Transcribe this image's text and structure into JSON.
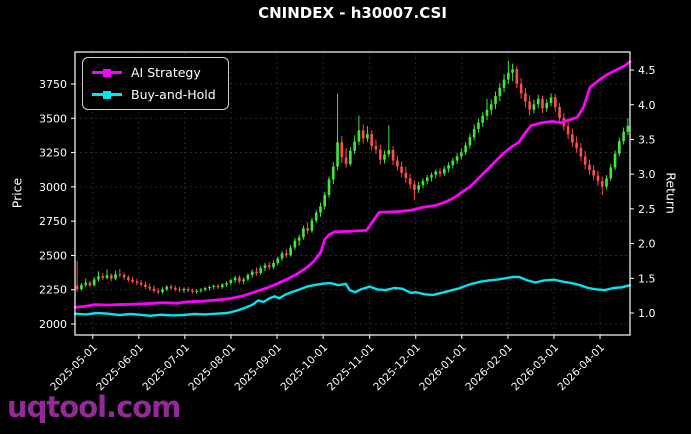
{
  "title": "CNINDEX - h30007.CSI",
  "watermark": {
    "text": "uqtool.com",
    "color": "#932a97"
  },
  "legend": {
    "items": [
      {
        "label": "AI Strategy",
        "color": "#ff00ff"
      },
      {
        "label": "Buy-and-Hold",
        "color": "#00e5ee"
      }
    ]
  },
  "chart_data": {
    "type": "candlestick+line",
    "title": "CNINDEX - h30007.CSI",
    "ylabel_left": "Price",
    "ylabel_right": "Return",
    "grid": true,
    "legend_position": "upper-left",
    "up_color": "#3ae83a",
    "down_color": "#ff4d4d",
    "axis_color": "#ffffff",
    "grid_color": "#555555",
    "price_ticks": [
      2000,
      2250,
      2500,
      2750,
      3000,
      3250,
      3500,
      3750
    ],
    "return_ticks": [
      1.0,
      1.5,
      2.0,
      2.5,
      3.0,
      3.5,
      4.0,
      4.5
    ],
    "price_range": [
      1920,
      3983
    ],
    "return_range": [
      0.683,
      4.76
    ],
    "x_ticks": [
      {
        "t": 0.032,
        "label": "2025-05-01"
      },
      {
        "t": 0.115,
        "label": "2025-06-01"
      },
      {
        "t": 0.198,
        "label": "2025-07-01"
      },
      {
        "t": 0.281,
        "label": "2025-08-01"
      },
      {
        "t": 0.364,
        "label": "2025-09-01"
      },
      {
        "t": 0.447,
        "label": "2025-10-01"
      },
      {
        "t": 0.531,
        "label": "2025-11-01"
      },
      {
        "t": 0.614,
        "label": "2025-12-01"
      },
      {
        "t": 0.697,
        "label": "2026-01-01"
      },
      {
        "t": 0.78,
        "label": "2026-02-01"
      },
      {
        "t": 0.863,
        "label": "2026-03-01"
      },
      {
        "t": 0.946,
        "label": "2026-04-01"
      }
    ],
    "candles": [
      [
        2280,
        2460,
        2235,
        2255
      ],
      [
        2255,
        2300,
        2242,
        2285
      ],
      [
        2285,
        2332,
        2270,
        2302
      ],
      [
        2302,
        2315,
        2268,
        2282
      ],
      [
        2282,
        2342,
        2275,
        2325
      ],
      [
        2325,
        2385,
        2310,
        2348
      ],
      [
        2348,
        2372,
        2320,
        2336
      ],
      [
        2336,
        2398,
        2325,
        2355
      ],
      [
        2355,
        2368,
        2312,
        2330
      ],
      [
        2330,
        2390,
        2318,
        2362
      ],
      [
        2362,
        2402,
        2340,
        2358
      ],
      [
        2358,
        2375,
        2322,
        2340
      ],
      [
        2340,
        2356,
        2305,
        2322
      ],
      [
        2322,
        2345,
        2295,
        2310
      ],
      [
        2310,
        2330,
        2282,
        2300
      ],
      [
        2300,
        2322,
        2272,
        2288
      ],
      [
        2288,
        2310,
        2255,
        2270
      ],
      [
        2270,
        2295,
        2242,
        2258
      ],
      [
        2258,
        2282,
        2228,
        2242
      ],
      [
        2242,
        2262,
        2218,
        2232
      ],
      [
        2232,
        2268,
        2222,
        2252
      ],
      [
        2252,
        2285,
        2240,
        2272
      ],
      [
        2272,
        2288,
        2248,
        2262
      ],
      [
        2262,
        2280,
        2238,
        2252
      ],
      [
        2252,
        2272,
        2232,
        2246
      ],
      [
        2246,
        2266,
        2228,
        2255
      ],
      [
        2255,
        2270,
        2232,
        2245
      ],
      [
        2245,
        2258,
        2222,
        2236
      ],
      [
        2236,
        2255,
        2220,
        2242
      ],
      [
        2242,
        2262,
        2228,
        2250
      ],
      [
        2250,
        2272,
        2238,
        2262
      ],
      [
        2262,
        2280,
        2245,
        2270
      ],
      [
        2270,
        2288,
        2252,
        2278
      ],
      [
        2278,
        2292,
        2255,
        2268
      ],
      [
        2268,
        2298,
        2258,
        2288
      ],
      [
        2288,
        2312,
        2270,
        2298
      ],
      [
        2298,
        2330,
        2282,
        2320
      ],
      [
        2320,
        2352,
        2300,
        2338
      ],
      [
        2338,
        2355,
        2295,
        2312
      ],
      [
        2312,
        2340,
        2288,
        2325
      ],
      [
        2325,
        2372,
        2312,
        2358
      ],
      [
        2358,
        2398,
        2338,
        2382
      ],
      [
        2382,
        2412,
        2352,
        2372
      ],
      [
        2372,
        2425,
        2358,
        2408
      ],
      [
        2408,
        2445,
        2385,
        2428
      ],
      [
        2428,
        2452,
        2395,
        2415
      ],
      [
        2415,
        2462,
        2400,
        2445
      ],
      [
        2445,
        2492,
        2428,
        2478
      ],
      [
        2478,
        2532,
        2460,
        2515
      ],
      [
        2515,
        2548,
        2482,
        2502
      ],
      [
        2502,
        2575,
        2490,
        2558
      ],
      [
        2558,
        2628,
        2540,
        2608
      ],
      [
        2608,
        2652,
        2570,
        2632
      ],
      [
        2632,
        2718,
        2615,
        2698
      ],
      [
        2698,
        2742,
        2655,
        2680
      ],
      [
        2680,
        2775,
        2665,
        2755
      ],
      [
        2755,
        2832,
        2738,
        2812
      ],
      [
        2812,
        2885,
        2782,
        2858
      ],
      [
        2858,
        2962,
        2835,
        2942
      ],
      [
        2942,
        3075,
        2920,
        3055
      ],
      [
        3055,
        3180,
        3020,
        3148
      ],
      [
        3148,
        3680,
        3120,
        3325
      ],
      [
        3325,
        3372,
        3175,
        3215
      ],
      [
        3215,
        3282,
        3140,
        3168
      ],
      [
        3168,
        3288,
        3150,
        3262
      ],
      [
        3262,
        3375,
        3240,
        3330
      ],
      [
        3330,
        3520,
        3305,
        3412
      ],
      [
        3412,
        3455,
        3315,
        3352
      ],
      [
        3352,
        3442,
        3328,
        3385
      ],
      [
        3385,
        3412,
        3265,
        3298
      ],
      [
        3298,
        3345,
        3240,
        3272
      ],
      [
        3272,
        3308,
        3162,
        3198
      ],
      [
        3198,
        3265,
        3170,
        3235
      ],
      [
        3235,
        3448,
        3215,
        3268
      ],
      [
        3268,
        3295,
        3158,
        3192
      ],
      [
        3192,
        3228,
        3118,
        3148
      ],
      [
        3148,
        3185,
        3072,
        3102
      ],
      [
        3102,
        3145,
        3028,
        3062
      ],
      [
        3062,
        3095,
        2985,
        3018
      ],
      [
        3018,
        3048,
        2902,
        2978
      ],
      [
        2978,
        3035,
        2955,
        3012
      ],
      [
        3012,
        3062,
        2992,
        3042
      ],
      [
        3042,
        3088,
        3018,
        3068
      ],
      [
        3068,
        3105,
        3040,
        3088
      ],
      [
        3088,
        3128,
        3062,
        3112
      ],
      [
        3112,
        3135,
        3072,
        3098
      ],
      [
        3098,
        3152,
        3080,
        3132
      ],
      [
        3132,
        3178,
        3105,
        3158
      ],
      [
        3158,
        3212,
        3135,
        3192
      ],
      [
        3192,
        3245,
        3168,
        3222
      ],
      [
        3222,
        3278,
        3198,
        3252
      ],
      [
        3252,
        3325,
        3232,
        3302
      ],
      [
        3302,
        3388,
        3278,
        3362
      ],
      [
        3362,
        3455,
        3338,
        3422
      ],
      [
        3422,
        3498,
        3395,
        3468
      ],
      [
        3468,
        3545,
        3438,
        3518
      ],
      [
        3518,
        3642,
        3488,
        3562
      ],
      [
        3562,
        3638,
        3525,
        3602
      ],
      [
        3602,
        3695,
        3568,
        3662
      ],
      [
        3662,
        3755,
        3625,
        3722
      ],
      [
        3722,
        3822,
        3688,
        3782
      ],
      [
        3782,
        3920,
        3748,
        3832
      ],
      [
        3832,
        3898,
        3772,
        3858
      ],
      [
        3858,
        3882,
        3718,
        3752
      ],
      [
        3752,
        3795,
        3642,
        3682
      ],
      [
        3682,
        3722,
        3578,
        3622
      ],
      [
        3622,
        3668,
        3522,
        3562
      ],
      [
        3562,
        3635,
        3535,
        3602
      ],
      [
        3602,
        3672,
        3572,
        3642
      ],
      [
        3642,
        3665,
        3538,
        3572
      ],
      [
        3572,
        3638,
        3548,
        3612
      ],
      [
        3612,
        3682,
        3588,
        3652
      ],
      [
        3652,
        3675,
        3548,
        3582
      ],
      [
        3582,
        3612,
        3468,
        3502
      ],
      [
        3502,
        3538,
        3412,
        3442
      ],
      [
        3442,
        3482,
        3348,
        3382
      ],
      [
        3382,
        3425,
        3292,
        3322
      ],
      [
        3322,
        3368,
        3248,
        3282
      ],
      [
        3282,
        3318,
        3188,
        3222
      ],
      [
        3222,
        3262,
        3128,
        3162
      ],
      [
        3162,
        3198,
        3088,
        3122
      ],
      [
        3122,
        3158,
        3048,
        3082
      ],
      [
        3082,
        3118,
        3008,
        3042
      ],
      [
        3042,
        3075,
        2940,
        3002
      ],
      [
        3002,
        3085,
        2982,
        3062
      ],
      [
        3062,
        3168,
        3042,
        3142
      ],
      [
        3142,
        3265,
        3122,
        3242
      ],
      [
        3242,
        3358,
        3222,
        3332
      ],
      [
        3332,
        3432,
        3308,
        3402
      ],
      [
        3402,
        3502,
        3378,
        3445
      ]
    ],
    "series": [
      {
        "name": "AI Strategy",
        "color": "#ff00ff",
        "axis": "return",
        "width": 2.8,
        "points": [
          [
            0,
            1.08
          ],
          [
            0.02,
            1.1
          ],
          [
            0.035,
            1.12
          ],
          [
            0.06,
            1.115
          ],
          [
            0.075,
            1.12
          ],
          [
            0.1,
            1.125
          ],
          [
            0.115,
            1.13
          ],
          [
            0.14,
            1.14
          ],
          [
            0.16,
            1.15
          ],
          [
            0.185,
            1.14
          ],
          [
            0.2,
            1.16
          ],
          [
            0.23,
            1.17
          ],
          [
            0.26,
            1.19
          ],
          [
            0.281,
            1.21
          ],
          [
            0.3,
            1.24
          ],
          [
            0.315,
            1.28
          ],
          [
            0.33,
            1.32
          ],
          [
            0.345,
            1.36
          ],
          [
            0.364,
            1.42
          ],
          [
            0.38,
            1.48
          ],
          [
            0.4,
            1.56
          ],
          [
            0.415,
            1.64
          ],
          [
            0.43,
            1.74
          ],
          [
            0.443,
            1.88
          ],
          [
            0.45,
            2.06
          ],
          [
            0.458,
            2.13
          ],
          [
            0.468,
            2.17
          ],
          [
            0.5,
            2.18
          ],
          [
            0.525,
            2.19
          ],
          [
            0.535,
            2.3
          ],
          [
            0.548,
            2.45
          ],
          [
            0.58,
            2.46
          ],
          [
            0.605,
            2.48
          ],
          [
            0.625,
            2.52
          ],
          [
            0.65,
            2.55
          ],
          [
            0.668,
            2.6
          ],
          [
            0.683,
            2.66
          ],
          [
            0.697,
            2.74
          ],
          [
            0.712,
            2.82
          ],
          [
            0.727,
            2.94
          ],
          [
            0.742,
            3.06
          ],
          [
            0.757,
            3.18
          ],
          [
            0.772,
            3.3
          ],
          [
            0.788,
            3.4
          ],
          [
            0.8,
            3.46
          ],
          [
            0.81,
            3.58
          ],
          [
            0.822,
            3.7
          ],
          [
            0.84,
            3.74
          ],
          [
            0.86,
            3.76
          ],
          [
            0.875,
            3.74
          ],
          [
            0.89,
            3.78
          ],
          [
            0.905,
            3.82
          ],
          [
            0.916,
            3.96
          ],
          [
            0.928,
            4.25
          ],
          [
            0.945,
            4.36
          ],
          [
            0.96,
            4.44
          ],
          [
            0.975,
            4.5
          ],
          [
            0.99,
            4.56
          ],
          [
            1.0,
            4.62
          ]
        ]
      },
      {
        "name": "Buy-and-Hold",
        "color": "#00e5ee",
        "axis": "return",
        "width": 2.4,
        "points": [
          [
            0,
            0.99
          ],
          [
            0.02,
            0.98
          ],
          [
            0.04,
            1.0
          ],
          [
            0.06,
            0.99
          ],
          [
            0.08,
            0.97
          ],
          [
            0.1,
            0.985
          ],
          [
            0.115,
            0.975
          ],
          [
            0.135,
            0.96
          ],
          [
            0.155,
            0.975
          ],
          [
            0.175,
            0.965
          ],
          [
            0.195,
            0.97
          ],
          [
            0.215,
            0.985
          ],
          [
            0.235,
            0.98
          ],
          [
            0.255,
            0.99
          ],
          [
            0.275,
            1.0
          ],
          [
            0.29,
            1.03
          ],
          [
            0.305,
            1.07
          ],
          [
            0.32,
            1.12
          ],
          [
            0.33,
            1.18
          ],
          [
            0.34,
            1.16
          ],
          [
            0.35,
            1.21
          ],
          [
            0.36,
            1.24
          ],
          [
            0.368,
            1.21
          ],
          [
            0.378,
            1.26
          ],
          [
            0.39,
            1.3
          ],
          [
            0.405,
            1.34
          ],
          [
            0.418,
            1.38
          ],
          [
            0.43,
            1.4
          ],
          [
            0.445,
            1.42
          ],
          [
            0.46,
            1.43
          ],
          [
            0.475,
            1.4
          ],
          [
            0.488,
            1.42
          ],
          [
            0.495,
            1.33
          ],
          [
            0.505,
            1.3
          ],
          [
            0.515,
            1.34
          ],
          [
            0.531,
            1.38
          ],
          [
            0.545,
            1.34
          ],
          [
            0.56,
            1.33
          ],
          [
            0.575,
            1.36
          ],
          [
            0.59,
            1.35
          ],
          [
            0.605,
            1.29
          ],
          [
            0.614,
            1.3
          ],
          [
            0.63,
            1.27
          ],
          [
            0.645,
            1.26
          ],
          [
            0.66,
            1.29
          ],
          [
            0.675,
            1.32
          ],
          [
            0.69,
            1.35
          ],
          [
            0.7,
            1.38
          ],
          [
            0.715,
            1.42
          ],
          [
            0.73,
            1.45
          ],
          [
            0.745,
            1.47
          ],
          [
            0.76,
            1.48
          ],
          [
            0.775,
            1.5
          ],
          [
            0.79,
            1.52
          ],
          [
            0.8,
            1.52
          ],
          [
            0.815,
            1.47
          ],
          [
            0.83,
            1.44
          ],
          [
            0.845,
            1.47
          ],
          [
            0.863,
            1.48
          ],
          [
            0.88,
            1.45
          ],
          [
            0.895,
            1.43
          ],
          [
            0.91,
            1.4
          ],
          [
            0.925,
            1.36
          ],
          [
            0.94,
            1.34
          ],
          [
            0.955,
            1.33
          ],
          [
            0.97,
            1.36
          ],
          [
            0.985,
            1.37
          ],
          [
            1.0,
            1.4
          ]
        ]
      }
    ]
  }
}
